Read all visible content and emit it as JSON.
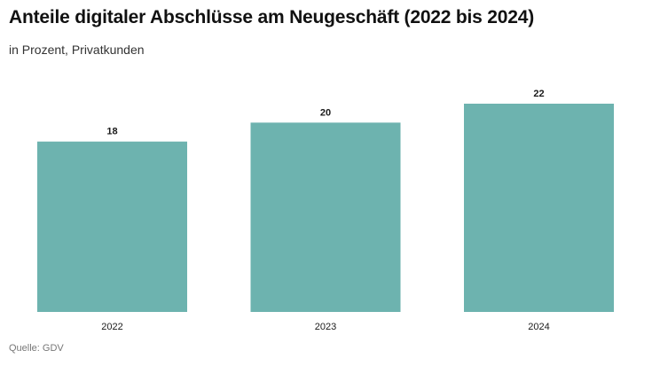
{
  "chart_data": {
    "type": "bar",
    "title": "Anteile digitaler Abschlüsse am Neugeschäft (2022 bis 2024)",
    "subtitle": "in Prozent, Privatkunden",
    "categories": [
      "2022",
      "2023",
      "2024"
    ],
    "values": [
      18,
      20,
      22
    ],
    "ylim": [
      0,
      22
    ],
    "xlabel": "",
    "ylabel": "",
    "grid": false,
    "legend": "none",
    "bar_color": "#6db3af",
    "source": "Quelle: GDV"
  }
}
